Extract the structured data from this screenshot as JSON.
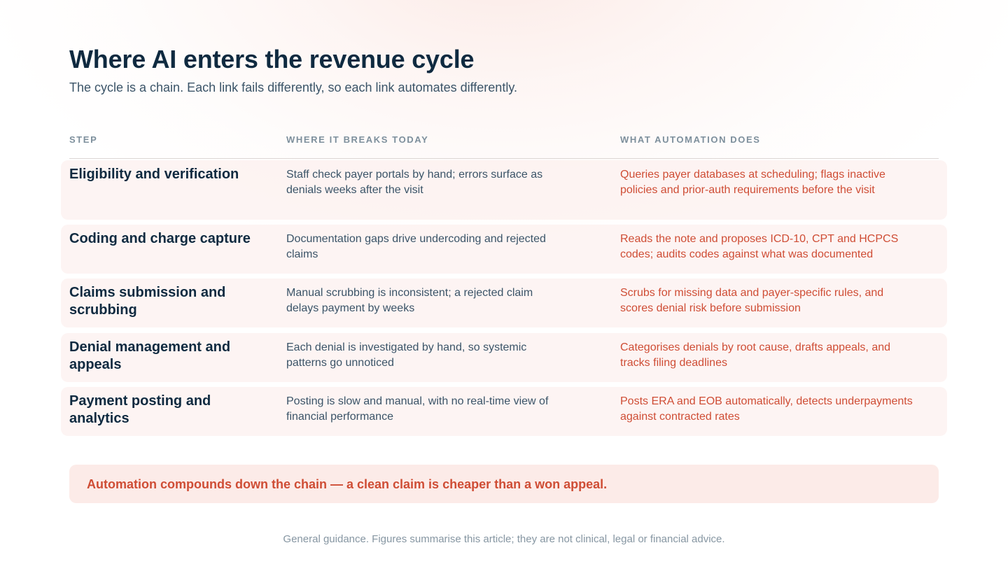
{
  "header": {
    "title": "Where AI enters the revenue cycle",
    "subtitle": "The cycle is a chain. Each link fails differently, so each link automates differently."
  },
  "table": {
    "columns": [
      "STEP",
      "WHERE IT BREAKS TODAY",
      "WHAT AUTOMATION DOES"
    ],
    "rows": [
      {
        "step": "Eligibility and verification",
        "breaks": "Staff check payer portals by hand; errors surface as denials weeks after the visit",
        "automation": "Queries payer databases at scheduling; flags inactive policies and prior-auth requirements before the visit"
      },
      {
        "step": "Coding and charge capture",
        "breaks": "Documentation gaps drive undercoding and rejected claims",
        "automation": "Reads the note and proposes ICD-10, CPT and HCPCS codes; audits codes against what was documented"
      },
      {
        "step": "Claims submission and scrubbing",
        "breaks": "Manual scrubbing is inconsistent; a rejected claim delays payment by weeks",
        "automation": "Scrubs for missing data and payer-specific rules, and scores denial risk before submission"
      },
      {
        "step": "Denial management and appeals",
        "breaks": "Each denial is investigated by hand, so systemic patterns go unnoticed",
        "automation": "Categorises denials by root cause, drafts appeals, and tracks filing deadlines"
      },
      {
        "step": "Payment posting and analytics",
        "breaks": "Posting is slow and manual, with no real-time view of financial performance",
        "automation": "Posts ERA and EOB automatically, detects underpayments against contracted rates"
      }
    ]
  },
  "callout": {
    "text": "Automation compounds down the chain — a clean claim is cheaper than a won appeal."
  },
  "footer": {
    "text": "General guidance. Figures summarise this article; they are not clinical, legal or financial advice."
  },
  "colors": {
    "heading": "#0f2a40",
    "body": "#3b5468",
    "accent": "#cf4d35",
    "row_background": "#fcefec",
    "callout_background": "#fcebe8"
  }
}
